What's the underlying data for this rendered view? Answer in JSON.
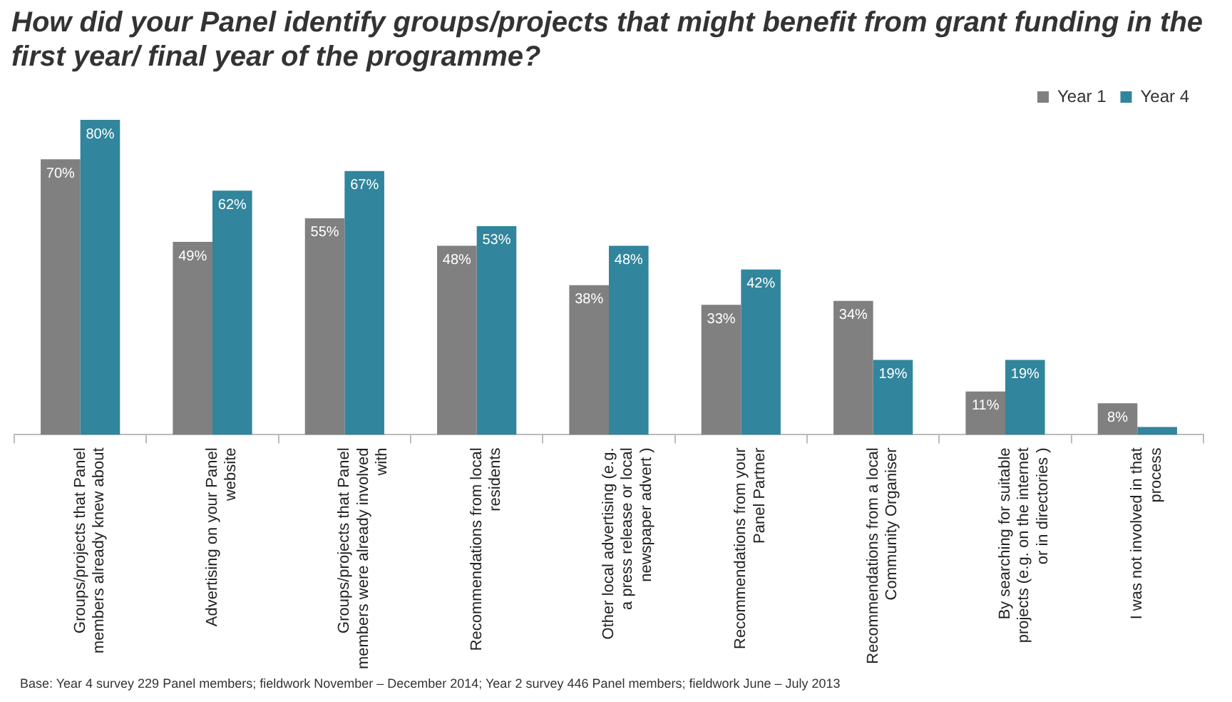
{
  "chart_data": {
    "type": "bar",
    "title": "How did your Panel identify groups/projects that might benefit from grant funding in the first year/ final year of the programme?",
    "categories": [
      "Groups/projects that Panel members already knew about",
      "Advertising on your Panel website",
      "Groups/projects that Panel members were already involved with",
      "Recommendations from local residents",
      "Other local advertising (e.g. a press release or local newspaper advert )",
      "Recommendations from your Panel Partner",
      "Recommendations from a local Community Organiser",
      "By searching for suitable projects (e.g. on the internet or in directories )",
      "I was not involved in that process"
    ],
    "series": [
      {
        "name": "Year 1",
        "color": "#808080",
        "values": [
          70,
          49,
          55,
          48,
          38,
          33,
          34,
          11,
          8
        ],
        "value_labels": [
          "70%",
          "49%",
          "55%",
          "48%",
          "38%",
          "33%",
          "34%",
          "11%",
          "8%"
        ]
      },
      {
        "name": "Year 4",
        "color": "#31859c",
        "values": [
          80,
          62,
          67,
          53,
          48,
          42,
          19,
          19,
          2
        ],
        "value_labels": [
          "80%",
          "62%",
          "67%",
          "53%",
          "48%",
          "42%",
          "19%",
          "19%",
          null
        ]
      }
    ],
    "legend": "top right",
    "annotations": [
      "Base: Year 4 survey  229 Panel members; fieldwork November – December 2014; Year 2 survey 446 Panel members; fieldwork June – July 2013"
    ]
  }
}
